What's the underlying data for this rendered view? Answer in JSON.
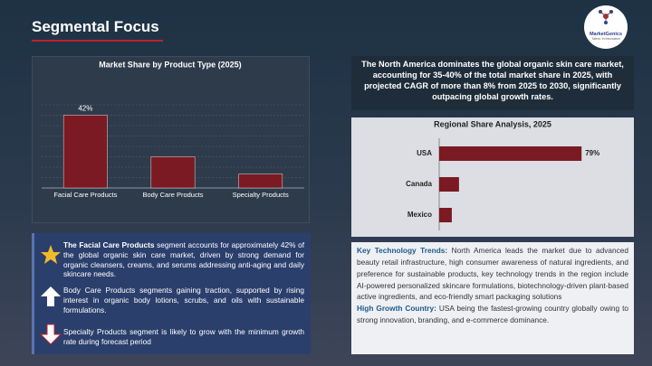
{
  "header": {
    "title": "Segmental Focus",
    "logo": "MarketGenics",
    "tagline": "Talent. In Innovation"
  },
  "chart_data": [
    {
      "type": "bar",
      "title": "Market Share by Product Type (2025)",
      "categories": [
        "Facial Care Products",
        "Body Care Products",
        "Specialty Products"
      ],
      "values": [
        42,
        18,
        8
      ],
      "value_labels": [
        "42%",
        null,
        null
      ],
      "color": "#7b1a22",
      "ylim": [
        0,
        48
      ],
      "yticks": [
        0,
        6,
        12,
        18,
        24,
        30,
        36,
        42,
        48
      ],
      "grid": true
    },
    {
      "type": "barh",
      "title": "Regional Share Analysis, 2025",
      "categories": [
        "USA",
        "Canada",
        "Mexico"
      ],
      "values": [
        79,
        11,
        7
      ],
      "value_labels": [
        "79%",
        null,
        null
      ],
      "color": "#7b1a22",
      "xlim": [
        0,
        100
      ]
    }
  ],
  "summary": "The North America dominates the global organic skin care market, accounting for 35-40% of the total market share in 2025, with projected CAGR of more than 8% from 2025 to 2030, significantly outpacing global growth rates.",
  "segments": [
    {
      "lead": "The Facial Care Products",
      "text": " segment accounts for approximately 42% of the global organic skin care market, driven by strong demand for organic cleansers, creams, and serums addressing anti-aging and daily skincare needs."
    },
    {
      "text": "Body Care Products segments gaining traction, supported by rising interest in organic body lotions, scrubs, and oils with sustainable formulations."
    },
    {
      "text": "Specialty Products segment is likely to grow with the minimum growth rate during forecast period"
    }
  ],
  "insights": [
    {
      "lead": "Key Technology Trends:",
      "text": " North America leads the market due to advanced beauty retail infrastructure, high consumer awareness of natural ingredients, and preference for sustainable products, key technology trends in the region include AI-powered personalized skincare formulations, biotechnology-driven plant-based active ingredients, and eco-friendly smart packaging solutions"
    },
    {
      "lead": "High Growth Country:",
      "text": " USA being the fastest-growing country globally owing to strong innovation, branding, and e-commerce dominance."
    }
  ]
}
